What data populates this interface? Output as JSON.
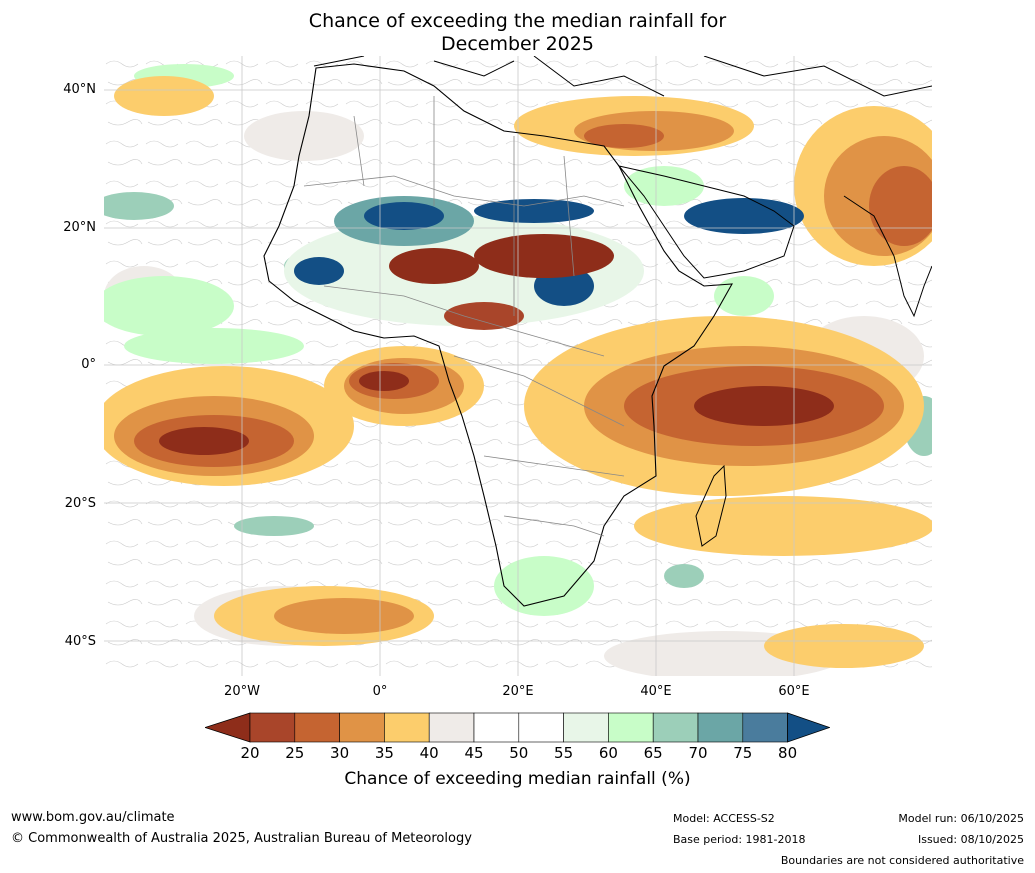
{
  "title": {
    "line1": "Chance of exceeding the median rainfall for",
    "line2": "December 2025"
  },
  "map": {
    "lat_labels": [
      "40°N",
      "20°N",
      "0°",
      "20°S",
      "40°S"
    ],
    "lon_labels": [
      "20°W",
      "0°",
      "20°E",
      "40°E",
      "60°E"
    ],
    "region": "Africa"
  },
  "colorbar": {
    "ticks": [
      "20",
      "25",
      "30",
      "35",
      "40",
      "45",
      "50",
      "55",
      "60",
      "65",
      "70",
      "75",
      "80"
    ],
    "colors": [
      "#8e2d1a",
      "#a9452a",
      "#c56431",
      "#e09346",
      "#fccd6c",
      "#efebe8",
      "#ffffff",
      "#ffffff",
      "#e8f6e8",
      "#c8fdc8",
      "#9ccfb9",
      "#6ba6a6",
      "#4a7c9d",
      "#134f85"
    ],
    "label": "Chance of exceeding median rainfall (%)"
  },
  "footer": {
    "website": "www.bom.gov.au/climate",
    "copyright": "© Commonwealth of Australia 2025, Australian Bureau of Meteorology",
    "model": "Model: ACCESS-S2",
    "base_period": "Base period: 1981-2018",
    "model_run": "Model run: 06/10/2025",
    "issued": "Issued: 08/10/2025",
    "disclaimer": "Boundaries are not considered authoritative"
  }
}
